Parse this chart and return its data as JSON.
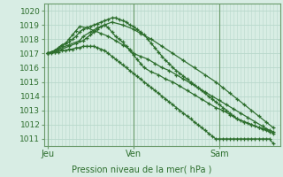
{
  "title": "Pression niveau de la mer( hPa )",
  "bg_color": "#d8ede4",
  "grid_color": "#b8d8cc",
  "line_color": "#2d6e2d",
  "spine_color": "#6a9a6a",
  "ylim": [
    1010.5,
    1020.5
  ],
  "yticks": [
    1011,
    1012,
    1013,
    1014,
    1015,
    1016,
    1017,
    1018,
    1019,
    1020
  ],
  "xlim": [
    0,
    66
  ],
  "day_labels": [
    "Jeu",
    "Ven",
    "Sam"
  ],
  "day_positions": [
    1,
    25,
    49
  ],
  "series": [
    {
      "x": [
        1,
        2,
        3,
        4,
        5,
        6,
        7,
        8,
        9,
        10,
        11,
        12,
        13,
        14,
        15,
        16,
        17,
        18,
        19,
        20,
        21,
        22,
        23,
        24,
        25,
        26,
        27,
        28,
        29,
        30,
        31,
        32,
        33,
        34,
        35,
        36,
        37,
        38,
        39,
        40,
        41,
        42,
        43,
        44,
        45,
        46,
        47,
        48,
        49,
        50,
        51,
        52,
        53,
        54,
        55,
        56,
        57,
        58,
        59,
        60,
        61,
        62,
        63,
        64
      ],
      "y": [
        1017.0,
        1017.1,
        1017.2,
        1017.4,
        1017.6,
        1017.7,
        1017.8,
        1018.0,
        1018.2,
        1018.5,
        1018.7,
        1018.8,
        1018.9,
        1019.0,
        1019.1,
        1019.2,
        1019.3,
        1019.4,
        1019.5,
        1019.5,
        1019.4,
        1019.3,
        1019.2,
        1019.0,
        1018.9,
        1018.7,
        1018.5,
        1018.3,
        1018.0,
        1017.7,
        1017.4,
        1017.1,
        1016.8,
        1016.5,
        1016.3,
        1016.0,
        1015.8,
        1015.6,
        1015.4,
        1015.2,
        1015.0,
        1014.8,
        1014.6,
        1014.4,
        1014.2,
        1014.0,
        1013.8,
        1013.6,
        1013.4,
        1013.2,
        1013.0,
        1012.8,
        1012.6,
        1012.4,
        1012.3,
        1012.2,
        1012.1,
        1012.0,
        1011.9,
        1011.8,
        1011.7,
        1011.6,
        1011.5,
        1011.4
      ],
      "marker": "+"
    },
    {
      "x": [
        1,
        4,
        7,
        10,
        11,
        13,
        15,
        17,
        19,
        22,
        25,
        27,
        30,
        33,
        36,
        39,
        42,
        45,
        48,
        50,
        52,
        54,
        56,
        58,
        60,
        62,
        64
      ],
      "y": [
        1017.0,
        1017.3,
        1017.6,
        1017.9,
        1018.2,
        1018.5,
        1018.8,
        1019.0,
        1019.2,
        1019.0,
        1018.7,
        1018.4,
        1018.0,
        1017.5,
        1017.0,
        1016.5,
        1016.0,
        1015.5,
        1015.0,
        1014.6,
        1014.2,
        1013.8,
        1013.4,
        1013.0,
        1012.6,
        1012.2,
        1011.8
      ],
      "marker": "+"
    },
    {
      "x": [
        1,
        3,
        5,
        7,
        9,
        11,
        12,
        13,
        14,
        15,
        16,
        17,
        18,
        19,
        20,
        21,
        22,
        23,
        24,
        25,
        26,
        27,
        28,
        30,
        32,
        34,
        36,
        38,
        40,
        42,
        44,
        46,
        48,
        50,
        52,
        54,
        56,
        58,
        60,
        62,
        64
      ],
      "y": [
        1017.0,
        1017.1,
        1017.3,
        1017.5,
        1017.7,
        1017.9,
        1018.1,
        1018.3,
        1018.5,
        1018.7,
        1018.9,
        1019.0,
        1018.8,
        1018.5,
        1018.2,
        1018.0,
        1017.8,
        1017.5,
        1017.2,
        1016.9,
        1016.6,
        1016.3,
        1016.0,
        1015.7,
        1015.5,
        1015.2,
        1015.0,
        1014.7,
        1014.4,
        1014.1,
        1013.8,
        1013.5,
        1013.2,
        1013.0,
        1012.7,
        1012.4,
        1012.2,
        1012.0,
        1011.8,
        1011.7,
        1011.5
      ],
      "marker": "+"
    },
    {
      "x": [
        1,
        3,
        5,
        6,
        7,
        8,
        9,
        10,
        12,
        14,
        16,
        18,
        20,
        22,
        24,
        25,
        27,
        29,
        31,
        33,
        35,
        37,
        39,
        41,
        43,
        45,
        47,
        49,
        51,
        53,
        55,
        57,
        59,
        61,
        63
      ],
      "y": [
        1017.0,
        1017.2,
        1017.5,
        1017.7,
        1018.0,
        1018.3,
        1018.6,
        1018.9,
        1018.8,
        1018.6,
        1018.4,
        1018.2,
        1017.9,
        1017.6,
        1017.3,
        1017.0,
        1016.8,
        1016.6,
        1016.3,
        1016.0,
        1015.8,
        1015.5,
        1015.2,
        1014.9,
        1014.6,
        1014.3,
        1014.0,
        1013.7,
        1013.4,
        1013.1,
        1012.8,
        1012.5,
        1012.2,
        1011.9,
        1011.6
      ],
      "marker": "+"
    },
    {
      "x": [
        1,
        2,
        3,
        4,
        5,
        6,
        7,
        8,
        9,
        10,
        11,
        12,
        13,
        14,
        15,
        16,
        17,
        18,
        19,
        20,
        21,
        22,
        23,
        24,
        25,
        26,
        27,
        28,
        29,
        30,
        31,
        32,
        33,
        34,
        35,
        36,
        37,
        38,
        39,
        40,
        41,
        42,
        43,
        44,
        45,
        46,
        47,
        48,
        49,
        50,
        51,
        52,
        53,
        54,
        55,
        56,
        57,
        58,
        59,
        60,
        61,
        62,
        63,
        64
      ],
      "y": [
        1017.0,
        1017.0,
        1017.1,
        1017.1,
        1017.2,
        1017.2,
        1017.3,
        1017.3,
        1017.4,
        1017.4,
        1017.5,
        1017.5,
        1017.5,
        1017.5,
        1017.4,
        1017.3,
        1017.2,
        1017.0,
        1016.8,
        1016.6,
        1016.4,
        1016.2,
        1016.0,
        1015.8,
        1015.6,
        1015.4,
        1015.2,
        1015.0,
        1014.8,
        1014.6,
        1014.4,
        1014.2,
        1014.0,
        1013.8,
        1013.6,
        1013.4,
        1013.2,
        1013.0,
        1012.8,
        1012.6,
        1012.4,
        1012.2,
        1012.0,
        1011.8,
        1011.6,
        1011.4,
        1011.2,
        1011.0,
        1011.0,
        1011.0,
        1011.0,
        1011.0,
        1011.0,
        1011.0,
        1011.0,
        1011.0,
        1011.0,
        1011.0,
        1011.0,
        1011.0,
        1011.0,
        1011.0,
        1011.0,
        1010.7
      ],
      "marker": "+"
    }
  ]
}
